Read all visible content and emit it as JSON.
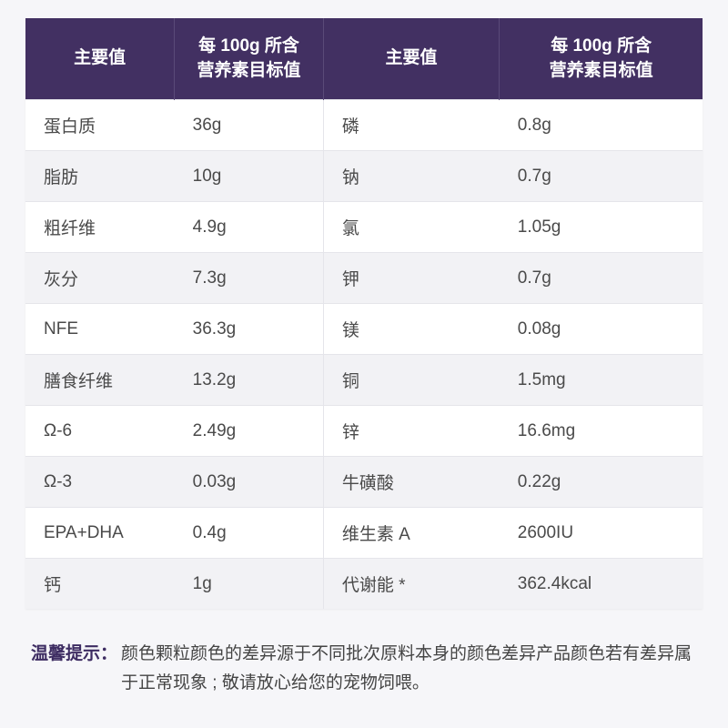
{
  "table": {
    "headers": {
      "col1": "主要值",
      "col2": "每 100g 所含\n营养素目标值",
      "col3": "主要值",
      "col4": "每 100g 所含\n营养素目标值"
    },
    "rows": [
      {
        "n1": "蛋白质",
        "v1": "36g",
        "n2": "磷",
        "v2": "0.8g"
      },
      {
        "n1": "脂肪",
        "v1": "10g",
        "n2": "钠",
        "v2": "0.7g"
      },
      {
        "n1": "粗纤维",
        "v1": "4.9g",
        "n2": "氯",
        "v2": "1.05g"
      },
      {
        "n1": "灰分",
        "v1": "7.3g",
        "n2": "钾",
        "v2": "0.7g"
      },
      {
        "n1": "NFE",
        "v1": "36.3g",
        "n2": "镁",
        "v2": "0.08g"
      },
      {
        "n1": "膳食纤维",
        "v1": "13.2g",
        "n2": "铜",
        "v2": "1.5mg"
      },
      {
        "n1": "Ω-6",
        "v1": "2.49g",
        "n2": "锌",
        "v2": "16.6mg"
      },
      {
        "n1": "Ω-3",
        "v1": "0.03g",
        "n2": "牛磺酸",
        "v2": "0.22g"
      },
      {
        "n1": "EPA+DHA",
        "v1": "0.4g",
        "n2": "维生素 A",
        "v2": "2600IU"
      },
      {
        "n1": "钙",
        "v1": "1g",
        "n2": "代谢能 *",
        "v2": "362.4kcal"
      }
    ]
  },
  "footnote": {
    "label": "温馨提示：",
    "text": "颜色颗粒颜色的差异源于不同批次原料本身的颜色差异产品颜色若有差异属于正常现象 ; 敬请放心给您的宠物饲喂。"
  },
  "styling": {
    "header_bg": "#423062",
    "header_fg": "#ffffff",
    "row_odd_bg": "#ffffff",
    "row_even_bg": "#f2f2f5",
    "body_bg": "#f6f6f9",
    "text_color": "#4a4a4a",
    "border_color": "#e5e5ea",
    "footnote_label_color": "#3d2c62",
    "header_fontsize": 19,
    "cell_fontsize": 19,
    "footnote_fontsize": 19
  }
}
